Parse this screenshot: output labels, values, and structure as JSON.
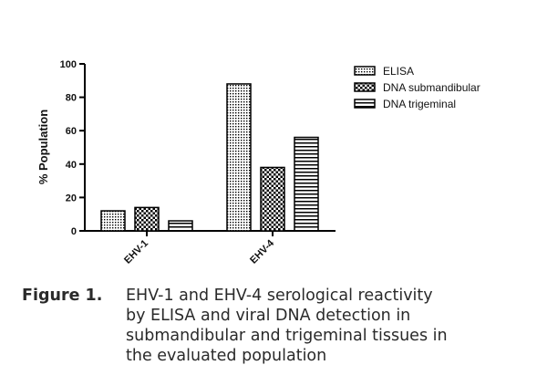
{
  "chart_data": {
    "type": "bar",
    "title": "",
    "xlabel": "",
    "ylabel": "% Population",
    "ylim": [
      0,
      100
    ],
    "yticks": [
      "0",
      "20",
      "40",
      "60",
      "80",
      "100"
    ],
    "categories": [
      "EHV-1",
      "EHV-4"
    ],
    "series": [
      {
        "name": "ELISA",
        "values": [
          12,
          88
        ],
        "pattern": "dots"
      },
      {
        "name": "DNA submandibular",
        "values": [
          14,
          38
        ],
        "pattern": "checker"
      },
      {
        "name": "DNA trigeminal",
        "values": [
          6,
          56
        ],
        "pattern": "stripes"
      }
    ],
    "legend_position": "top-right",
    "grid": false
  },
  "caption": {
    "label": "Figure 1.",
    "lines": [
      "EHV-1 and EHV-4 serological reactivity",
      "by ELISA and viral DNA detection in",
      "submandibular and trigeminal tissues in",
      "the evaluated population"
    ]
  }
}
